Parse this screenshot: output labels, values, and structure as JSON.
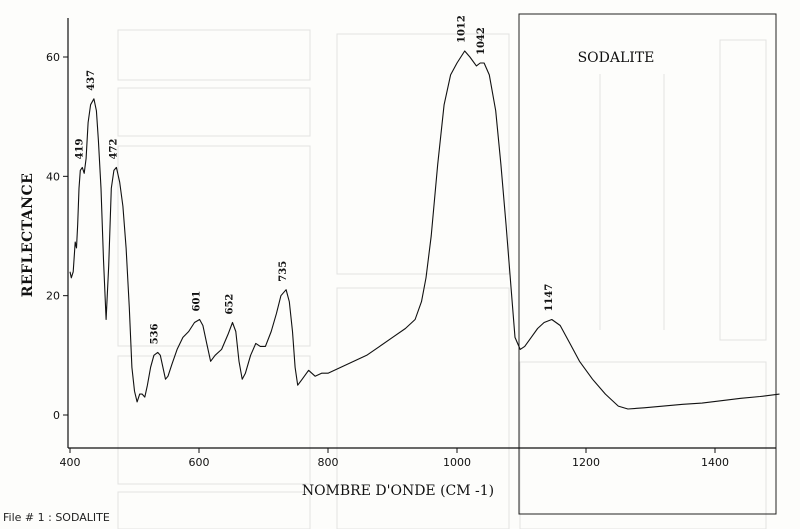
{
  "caption": "File # 1 : SODALITE",
  "chart_data": {
    "type": "line",
    "title": "SODALITE",
    "xlabel": "NOMBRE D'ONDE (CM -1)",
    "ylabel": "REFLECTANCE",
    "xlim": [
      400,
      1500
    ],
    "ylim": [
      -2,
      64
    ],
    "xticks": [
      400,
      600,
      800,
      1000,
      1200,
      1400
    ],
    "yticks": [
      0,
      20,
      40,
      60
    ],
    "grid": false,
    "series": [
      {
        "values": [
          [
            400,
            24
          ],
          [
            402,
            23
          ],
          [
            405,
            24
          ],
          [
            408,
            29
          ],
          [
            410,
            28
          ],
          [
            412,
            32
          ],
          [
            414,
            38
          ],
          [
            416,
            41
          ],
          [
            419,
            41.5
          ],
          [
            422,
            40.5
          ],
          [
            425,
            43
          ],
          [
            428,
            49
          ],
          [
            432,
            52
          ],
          [
            437,
            53
          ],
          [
            441,
            51
          ],
          [
            444,
            46
          ],
          [
            448,
            38
          ],
          [
            452,
            26
          ],
          [
            456,
            16
          ],
          [
            460,
            25
          ],
          [
            464,
            38
          ],
          [
            468,
            41
          ],
          [
            472,
            41.5
          ],
          [
            477,
            39
          ],
          [
            482,
            35
          ],
          [
            487,
            28
          ],
          [
            492,
            18
          ],
          [
            496,
            8
          ],
          [
            500,
            4
          ],
          [
            504,
            2.2
          ],
          [
            508,
            3.5
          ],
          [
            512,
            3.5
          ],
          [
            516,
            3
          ],
          [
            520,
            5
          ],
          [
            525,
            8
          ],
          [
            530,
            10
          ],
          [
            536,
            10.5
          ],
          [
            540,
            10
          ],
          [
            544,
            8
          ],
          [
            548,
            6
          ],
          [
            552,
            6.5
          ],
          [
            558,
            8.5
          ],
          [
            566,
            11
          ],
          [
            575,
            13
          ],
          [
            584,
            14
          ],
          [
            593,
            15.5
          ],
          [
            601,
            16
          ],
          [
            606,
            15
          ],
          [
            612,
            12
          ],
          [
            618,
            9
          ],
          [
            625,
            10
          ],
          [
            635,
            11
          ],
          [
            645,
            13.5
          ],
          [
            652,
            15.5
          ],
          [
            657,
            14
          ],
          [
            662,
            9
          ],
          [
            667,
            6
          ],
          [
            672,
            7
          ],
          [
            680,
            10
          ],
          [
            688,
            12
          ],
          [
            695,
            11.5
          ],
          [
            703,
            11.5
          ],
          [
            712,
            14
          ],
          [
            720,
            17
          ],
          [
            727,
            20
          ],
          [
            735,
            21
          ],
          [
            740,
            19
          ],
          [
            745,
            14
          ],
          [
            749,
            8
          ],
          [
            753,
            5
          ],
          [
            760,
            6
          ],
          [
            770,
            7.5
          ],
          [
            780,
            6.5
          ],
          [
            790,
            7
          ],
          [
            800,
            7
          ],
          [
            820,
            8
          ],
          [
            840,
            9
          ],
          [
            860,
            10
          ],
          [
            880,
            11.5
          ],
          [
            900,
            13
          ],
          [
            920,
            14.5
          ],
          [
            935,
            16
          ],
          [
            945,
            19
          ],
          [
            952,
            23
          ],
          [
            960,
            30
          ],
          [
            970,
            42
          ],
          [
            980,
            52
          ],
          [
            990,
            57
          ],
          [
            1000,
            59
          ],
          [
            1012,
            61
          ],
          [
            1020,
            60
          ],
          [
            1030,
            58.5
          ],
          [
            1036,
            59
          ],
          [
            1042,
            59
          ],
          [
            1050,
            57
          ],
          [
            1060,
            51
          ],
          [
            1068,
            42
          ],
          [
            1076,
            32
          ],
          [
            1084,
            21
          ],
          [
            1090,
            13
          ],
          [
            1098,
            11
          ],
          [
            1105,
            11.5
          ],
          [
            1115,
            13
          ],
          [
            1125,
            14.5
          ],
          [
            1135,
            15.5
          ],
          [
            1147,
            16
          ],
          [
            1160,
            15
          ],
          [
            1175,
            12
          ],
          [
            1190,
            9
          ],
          [
            1210,
            6
          ],
          [
            1230,
            3.5
          ],
          [
            1250,
            1.5
          ],
          [
            1265,
            1
          ],
          [
            1290,
            1.2
          ],
          [
            1320,
            1.5
          ],
          [
            1350,
            1.8
          ],
          [
            1380,
            2
          ],
          [
            1410,
            2.4
          ],
          [
            1440,
            2.8
          ],
          [
            1470,
            3.1
          ],
          [
            1500,
            3.5
          ]
        ]
      }
    ],
    "annotations": [
      {
        "text": "419",
        "x": 419,
        "y": 41.5
      },
      {
        "text": "437",
        "x": 437,
        "y": 53
      },
      {
        "text": "472",
        "x": 472,
        "y": 41.5
      },
      {
        "text": "536",
        "x": 536,
        "y": 10.5
      },
      {
        "text": "601",
        "x": 601,
        "y": 16
      },
      {
        "text": "652",
        "x": 652,
        "y": 15.5
      },
      {
        "text": "735",
        "x": 735,
        "y": 21
      },
      {
        "text": "1012",
        "x": 1012,
        "y": 61
      },
      {
        "text": "1042",
        "x": 1042,
        "y": 59
      },
      {
        "text": "1147",
        "x": 1147,
        "y": 16
      }
    ]
  }
}
